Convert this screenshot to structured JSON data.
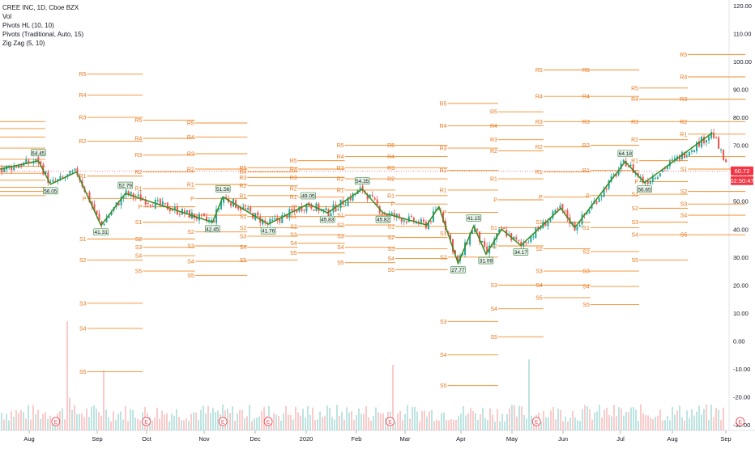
{
  "legend": {
    "symbol": "CREE INC, 1D, Cboe BZX",
    "vol": "Vol",
    "pivots_hl": "Pivots HL (10, 10)",
    "pivots_trad": "Pivots (Traditional, Auto, 15)",
    "zigzag": "Zig Zag (5, 10)"
  },
  "colors": {
    "up": "#26a69a",
    "down": "#ef5350",
    "pivot": "#f28c28",
    "zigzag": "#3a8a1e",
    "price_tag": "#f23645",
    "zz_box": "#e8f5e9"
  },
  "chart_data": {
    "type": "candlestick",
    "title": "CREE INC, 1D, Cboe BZX",
    "y_axis": {
      "ticks": [
        "120.00",
        "110.00",
        "100.00",
        "90.00",
        "80.00",
        "70.00",
        "60.00",
        "50.00",
        "40.00",
        "30.00",
        "20.00",
        "10.00",
        "0.00",
        "-10.00",
        "-20.00",
        "-30.00"
      ],
      "range": [
        -32,
        122
      ]
    },
    "x_axis": {
      "ticks": [
        "Aug",
        "Sep",
        "Oct",
        "Nov",
        "Dec",
        "2020",
        "Feb",
        "Mar",
        "Apr",
        "May",
        "Jun",
        "Jul",
        "Aug",
        "Sep"
      ]
    },
    "last_price": "60.72",
    "countdown": "02:50:47",
    "zigzag_points": [
      {
        "t": 0.0,
        "v": 61.5
      },
      {
        "t": 1.1,
        "v": 64.45
      },
      {
        "t": 1.45,
        "v": 56.05
      },
      {
        "t": 2.2,
        "v": 60.5
      },
      {
        "t": 2.9,
        "v": 41.31
      },
      {
        "t": 3.6,
        "v": 52.79
      },
      {
        "t": 6.1,
        "v": 42.45
      },
      {
        "t": 6.4,
        "v": 51.56
      },
      {
        "t": 7.7,
        "v": 41.76
      },
      {
        "t": 8.85,
        "v": 49.05
      },
      {
        "t": 9.4,
        "v": 45.83
      },
      {
        "t": 10.4,
        "v": 54.35
      },
      {
        "t": 11.0,
        "v": 45.82
      },
      {
        "t": 12.25,
        "v": 41.5
      },
      {
        "t": 12.6,
        "v": 48.0
      },
      {
        "t": 13.15,
        "v": 27.77
      },
      {
        "t": 13.6,
        "v": 41.15
      },
      {
        "t": 13.95,
        "v": 31.09
      },
      {
        "t": 14.4,
        "v": 40.0
      },
      {
        "t": 14.95,
        "v": 34.17
      },
      {
        "t": 16.1,
        "v": 47.5
      },
      {
        "t": 16.5,
        "v": 40.5
      },
      {
        "t": 17.95,
        "v": 64.18
      },
      {
        "t": 18.5,
        "v": 56.65
      },
      {
        "t": 20.45,
        "v": 74.5
      }
    ],
    "zigzag_labels": [
      {
        "t": 1.1,
        "v": 64.45,
        "text": "64.45",
        "pos": "above"
      },
      {
        "t": 1.45,
        "v": 56.05,
        "text": "56.05",
        "pos": "below"
      },
      {
        "t": 2.9,
        "v": 41.31,
        "text": "41.31",
        "pos": "below"
      },
      {
        "t": 3.6,
        "v": 52.79,
        "text": "52.79",
        "pos": "above"
      },
      {
        "t": 6.1,
        "v": 42.45,
        "text": "42.45",
        "pos": "below"
      },
      {
        "t": 6.4,
        "v": 51.56,
        "text": "51.56",
        "pos": "above"
      },
      {
        "t": 7.7,
        "v": 41.76,
        "text": "41.76",
        "pos": "below"
      },
      {
        "t": 8.85,
        "v": 49.05,
        "text": "49.05",
        "pos": "above"
      },
      {
        "t": 9.4,
        "v": 45.83,
        "text": "45.83",
        "pos": "below"
      },
      {
        "t": 10.4,
        "v": 54.35,
        "text": "54.35",
        "pos": "above"
      },
      {
        "t": 11.0,
        "v": 45.82,
        "text": "45.82",
        "pos": "below"
      },
      {
        "t": 13.15,
        "v": 27.77,
        "text": "27.77",
        "pos": "below"
      },
      {
        "t": 13.6,
        "v": 41.15,
        "text": "41.15",
        "pos": "above"
      },
      {
        "t": 13.95,
        "v": 31.09,
        "text": "31.09",
        "pos": "below"
      },
      {
        "t": 14.95,
        "v": 34.17,
        "text": "34.17",
        "pos": "below"
      },
      {
        "t": 17.95,
        "v": 64.18,
        "text": "64.18",
        "pos": "above"
      },
      {
        "t": 18.5,
        "v": 56.65,
        "text": "56.65",
        "pos": "below"
      }
    ],
    "pivot_periods": [
      {
        "t0": 0.0,
        "t1": 1.3,
        "R5": 78.5,
        "R4": 76.0,
        "R3": 73.0,
        "R2": 69.0,
        "R1": 65.0,
        "P": 62.5,
        "S1": 60.0,
        "S2": 57.5,
        "S3": 55.0,
        "S4": 53.5,
        "S5": 52.0
      },
      {
        "t0": 2.5,
        "t1": 4.1,
        "R5": 95.5,
        "R4": 88.0,
        "R3": 80.0,
        "R2": 71.5,
        "R1": 59.0,
        "P": 51.0,
        "S1": 36.5,
        "S2": 29.0,
        "S3": 13.5,
        "S4": 4.5,
        "S5": -11.0
      },
      {
        "t0": 4.1,
        "t1": 5.6,
        "R5": 79.0,
        "R4": 72.5,
        "R3": 66.5,
        "R2": 60.5,
        "R1": 54.5,
        "P": 48.0,
        "S1": 42.5,
        "S2": 36.5,
        "S3": 33.5,
        "S4": 30.5,
        "S5": 25.0
      },
      {
        "t0": 5.6,
        "t1": 7.1,
        "R5": 78.0,
        "R4": 73.0,
        "R3": 67.0,
        "R2": 61.5,
        "R1": 56.0,
        "P": 51.0,
        "S1": 45.0,
        "S2": 39.0,
        "S3": 34.0,
        "S4": 28.5,
        "S5": 23.5
      },
      {
        "t0": 7.1,
        "t1": 8.55,
        "R5": 62.0,
        "R4": 60.5,
        "R3": 58.5,
        "R2": 55.5,
        "R1": 52.0,
        "P": 48.0,
        "S1": 44.5,
        "S2": 40.5,
        "S3": 37.5,
        "S4": 33.5,
        "S5": 29.0
      },
      {
        "t0": 8.55,
        "t1": 9.9,
        "R5": 64.5,
        "R4": 61.5,
        "R3": 58.5,
        "R2": 54.5,
        "R1": 51.5,
        "P": 48.0,
        "S1": 44.5,
        "S2": 41.0,
        "S3": 38.0,
        "S4": 35.0,
        "S5": 31.5
      },
      {
        "t0": 9.9,
        "t1": 11.35,
        "R5": 70.0,
        "R4": 66.0,
        "R3": 62.0,
        "R2": 58.0,
        "R1": 54.0,
        "P": 49.5,
        "S1": 45.0,
        "S2": 41.5,
        "S3": 37.5,
        "S4": 33.5,
        "S5": 28.0
      },
      {
        "t0": 11.35,
        "t1": 12.85,
        "R5": 70.0,
        "R4": 66.0,
        "R3": 62.0,
        "R2": 58.0,
        "R1": 52.0,
        "P": 49.0,
        "S1": 41.0,
        "S2": 37.0,
        "S3": 33.0,
        "S4": 29.5,
        "S5": 25.5
      },
      {
        "t0": 12.85,
        "t1": 14.3,
        "R5": 85.0,
        "R4": 77.0,
        "R3": 69.0,
        "R2": 61.0,
        "R1": 54.0,
        "P": 46.0,
        "S1": 38.5,
        "S2": 30.0,
        "S3": 7.0,
        "S4": -5.0,
        "S5": -16.0
      },
      {
        "t0": 14.3,
        "t1": 15.6,
        "R5": 82.0,
        "R4": 77.0,
        "R3": 72.0,
        "R2": 68.0,
        "R1": 58.0,
        "P": 50.5,
        "S1": 40.5,
        "S2": 34.0,
        "S3": 20.0,
        "S4": 11.5,
        "S5": 1.5
      },
      {
        "t0": 15.6,
        "t1": 16.95,
        "R5": 97.0,
        "R4": 87.5,
        "R3": 78.5,
        "R2": 69.5,
        "R1": 60.5,
        "P": 51.5,
        "S1": 42.5,
        "S2": 33.0,
        "S3": 25.0,
        "S4": 20.0,
        "S5": 15.5
      },
      {
        "t0": 16.95,
        "t1": 18.35,
        "R5": 97.0,
        "R4": 87.5,
        "R3": 78.5,
        "R2": 70.0,
        "R1": 61.0,
        "P": 52.0,
        "S1": 40.5,
        "S2": 32.0,
        "S3": 25.0,
        "S4": 19.5,
        "S5": 13.0
      },
      {
        "t0": 18.35,
        "t1": 19.75,
        "R5": 90.5,
        "R4": 86.5,
        "R3": 78.5,
        "R2": 72.0,
        "R1": 64.5,
        "P": 57.0,
        "S1": 52.5,
        "S2": 47.5,
        "S3": 42.5,
        "S4": 38.0,
        "S5": 29.0
      },
      {
        "t0": 19.75,
        "t1": 21.4,
        "R5": 102.5,
        "R4": 94.5,
        "R3": 86.5,
        "R2": 78.5,
        "R1": 74.0,
        "P": 66.0,
        "S1": 61.5,
        "S2": 53.5,
        "S3": 49.0,
        "S4": 45.0,
        "S5": 38.0
      }
    ],
    "earnings_markers": [
      1.6,
      4.2,
      6.4,
      7.7,
      11.2,
      15.4,
      21.25
    ],
    "volume_spikes": [
      {
        "t": 1.85,
        "v": 1.0
      },
      {
        "t": 1.95,
        "v": 0.3
      },
      {
        "t": 2.9,
        "v": 0.55
      },
      {
        "t": 11.25,
        "v": 0.6
      },
      {
        "t": 15.15,
        "v": 0.65
      },
      {
        "t": 21.35,
        "v": 0.5
      }
    ]
  }
}
